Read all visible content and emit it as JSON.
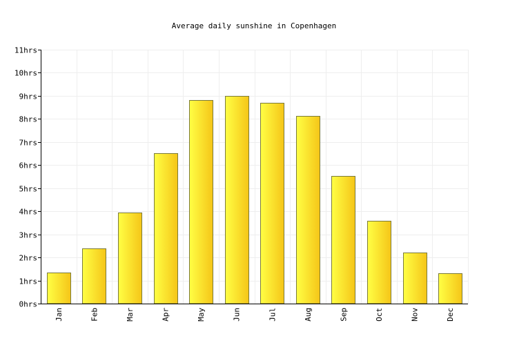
{
  "chart_data": {
    "type": "bar",
    "title": "Average daily sunshine in Copenhagen",
    "categories": [
      "Jan",
      "Feb",
      "Mar",
      "Apr",
      "May",
      "Jun",
      "Jul",
      "Aug",
      "Sep",
      "Oct",
      "Nov",
      "Dec"
    ],
    "values": [
      1.35,
      2.4,
      3.95,
      6.52,
      8.82,
      9.0,
      8.7,
      8.13,
      5.54,
      3.6,
      2.22,
      1.32
    ],
    "unit": "hrs",
    "ylim": [
      0,
      11
    ],
    "yticks": [
      "0hrs",
      "1hrs",
      "2hrs",
      "3hrs",
      "4hrs",
      "5hrs",
      "6hrs",
      "7hrs",
      "8hrs",
      "9hrs",
      "10hrs",
      "11hrs"
    ],
    "grid": true,
    "legend": "none",
    "colors": {
      "bar_light": "#ffff44",
      "bar_dark": "#f5c518",
      "bar_stroke": "#7a7a3a",
      "grid": "#eeeeee"
    }
  }
}
